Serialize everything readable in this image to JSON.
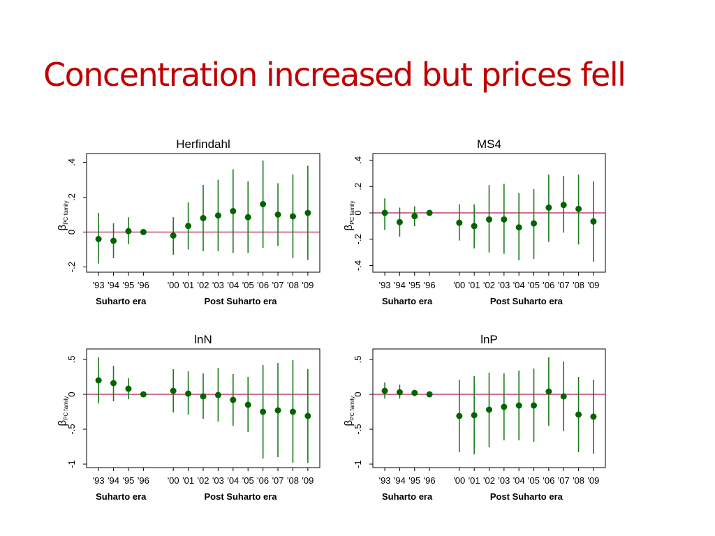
{
  "slide": {
    "title": "Concentration increased but prices fell"
  },
  "colors": {
    "title": "#c00000",
    "marker": "#006400",
    "ci_line": "#1a7a1a",
    "zero_line": "#b0174f",
    "frame": "#000000"
  },
  "chart_data": [
    {
      "type": "scatter",
      "title": "Herfindahl",
      "ylabel_symbol": "β",
      "ylabel_subscript": "PC family",
      "ylim": [
        -0.23,
        0.45
      ],
      "yticks": [
        -0.2,
        0,
        0.2,
        0.4
      ],
      "ytick_labels": [
        "-.2",
        "0",
        ".2",
        ".4"
      ],
      "categories": [
        "'93",
        "'94",
        "'95",
        "'96",
        "'00",
        "'01",
        "'02",
        "'03",
        "'04",
        "'05",
        "'06",
        "'07",
        "'08",
        "'09"
      ],
      "x": [
        1,
        2,
        3,
        4,
        6,
        7,
        8,
        9,
        10,
        11,
        12,
        13,
        14,
        15
      ],
      "values": [
        -0.04,
        -0.05,
        0.005,
        0,
        -0.02,
        0.035,
        0.08,
        0.095,
        0.12,
        0.085,
        0.16,
        0.1,
        0.09,
        0.11
      ],
      "ci_lower": [
        -0.18,
        -0.15,
        -0.07,
        -0.005,
        -0.13,
        -0.1,
        -0.11,
        -0.11,
        -0.12,
        -0.12,
        -0.09,
        -0.08,
        -0.15,
        -0.16
      ],
      "ci_upper": [
        0.11,
        0.05,
        0.085,
        0.005,
        0.085,
        0.17,
        0.27,
        0.3,
        0.36,
        0.29,
        0.41,
        0.28,
        0.33,
        0.38
      ],
      "groups": [
        {
          "label": "Suharto era",
          "x_from": 1,
          "x_to": 4
        },
        {
          "label": "Post Suharto era",
          "x_from": 6,
          "x_to": 15
        }
      ],
      "reference_line": 0
    },
    {
      "type": "scatter",
      "title": "MS4",
      "ylabel_symbol": "β",
      "ylabel_subscript": "PC family",
      "ylim": [
        -0.45,
        0.45
      ],
      "yticks": [
        -0.4,
        -0.2,
        0,
        0.2,
        0.4
      ],
      "ytick_labels": [
        "-.4",
        "-.2",
        "0",
        ".2",
        ".4"
      ],
      "categories": [
        "'93",
        "'94",
        "'95",
        "'96",
        "'00",
        "'01",
        "'02",
        "'03",
        "'04",
        "'05",
        "'06",
        "'07",
        "'08",
        "'09"
      ],
      "x": [
        1,
        2,
        3,
        4,
        6,
        7,
        8,
        9,
        10,
        11,
        12,
        13,
        14,
        15
      ],
      "values": [
        0,
        -0.07,
        -0.025,
        0,
        -0.075,
        -0.1,
        -0.05,
        -0.05,
        -0.11,
        -0.08,
        0.04,
        0.06,
        0.03,
        -0.065
      ],
      "ci_lower": [
        -0.13,
        -0.18,
        -0.1,
        -0.005,
        -0.21,
        -0.27,
        -0.3,
        -0.31,
        -0.36,
        -0.35,
        -0.22,
        -0.15,
        -0.24,
        -0.37
      ],
      "ci_upper": [
        0.11,
        0.04,
        0.05,
        0.005,
        0.065,
        0.065,
        0.21,
        0.22,
        0.15,
        0.18,
        0.29,
        0.28,
        0.29,
        0.24
      ],
      "groups": [
        {
          "label": "Suharto era",
          "x_from": 1,
          "x_to": 4
        },
        {
          "label": "Post Suharto era",
          "x_from": 6,
          "x_to": 15
        }
      ],
      "reference_line": 0
    },
    {
      "type": "scatter",
      "title": "lnN",
      "ylabel_symbol": "β",
      "ylabel_subscript": "PC family",
      "ylim": [
        -1.05,
        0.65
      ],
      "yticks": [
        -1,
        -0.5,
        0,
        0.5
      ],
      "ytick_labels": [
        "-1",
        "-.5",
        "0",
        ".5"
      ],
      "categories": [
        "'93",
        "'94",
        "'95",
        "'96",
        "'00",
        "'01",
        "'02",
        "'03",
        "'04",
        "'05",
        "'06",
        "'07",
        "'08",
        "'09"
      ],
      "x": [
        1,
        2,
        3,
        4,
        6,
        7,
        8,
        9,
        10,
        11,
        12,
        13,
        14,
        15
      ],
      "values": [
        0.2,
        0.16,
        0.08,
        0,
        0.05,
        0.01,
        -0.03,
        -0.01,
        -0.08,
        -0.15,
        -0.25,
        -0.23,
        -0.25,
        -0.31
      ],
      "ci_lower": [
        -0.13,
        -0.1,
        -0.07,
        -0.01,
        -0.26,
        -0.29,
        -0.35,
        -0.39,
        -0.45,
        -0.54,
        -0.92,
        -0.9,
        -0.98,
        -0.98
      ],
      "ci_upper": [
        0.53,
        0.41,
        0.23,
        0.01,
        0.36,
        0.33,
        0.3,
        0.38,
        0.29,
        0.25,
        0.42,
        0.45,
        0.49,
        0.36
      ],
      "groups": [
        {
          "label": "Suharto era",
          "x_from": 1,
          "x_to": 4
        },
        {
          "label": "Post Suharto era",
          "x_from": 6,
          "x_to": 15
        }
      ],
      "reference_line": 0
    },
    {
      "type": "scatter",
      "title": "lnP",
      "ylabel_symbol": "β",
      "ylabel_subscript": "PC family",
      "ylim": [
        -1.05,
        0.65
      ],
      "yticks": [
        -1,
        -0.5,
        0,
        0.5
      ],
      "ytick_labels": [
        "-1",
        "-.5",
        "0",
        ".5"
      ],
      "categories": [
        "'93",
        "'94",
        "'95",
        "'96",
        "'00",
        "'01",
        "'02",
        "'03",
        "'04",
        "'05",
        "'06",
        "'07",
        "'08",
        "'09"
      ],
      "x": [
        1,
        2,
        3,
        4,
        6,
        7,
        8,
        9,
        10,
        11,
        12,
        13,
        14,
        15
      ],
      "values": [
        0.05,
        0.03,
        0.02,
        0,
        -0.31,
        -0.3,
        -0.22,
        -0.18,
        -0.16,
        -0.16,
        0.04,
        -0.03,
        -0.29,
        -0.32
      ],
      "ci_lower": [
        -0.06,
        -0.06,
        -0.01,
        -0.005,
        -0.83,
        -0.86,
        -0.76,
        -0.66,
        -0.66,
        -0.68,
        -0.45,
        -0.53,
        -0.83,
        -0.85
      ],
      "ci_upper": [
        0.17,
        0.14,
        0.04,
        0.005,
        0.21,
        0.26,
        0.31,
        0.3,
        0.34,
        0.37,
        0.53,
        0.47,
        0.25,
        0.21
      ],
      "groups": [
        {
          "label": "Suharto era",
          "x_from": 1,
          "x_to": 4
        },
        {
          "label": "Post Suharto era",
          "x_from": 6,
          "x_to": 15
        }
      ],
      "reference_line": 0
    }
  ]
}
